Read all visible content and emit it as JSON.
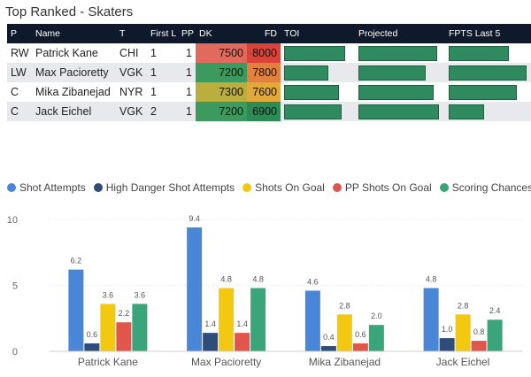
{
  "title": "Top Ranked - Skaters",
  "table": {
    "columns": [
      "P",
      "Name",
      "T",
      "First L",
      "PP",
      "DK",
      "FD",
      "TOI",
      "Projected",
      "FPTS Last 5"
    ],
    "rows": [
      {
        "pos": "RW",
        "name": "Patrick Kane",
        "team": "CHI",
        "first_line": "1",
        "pp": "1",
        "dk": "7500",
        "fd": "8000",
        "dk_color": "#e06a5e",
        "fd_color": "#d9433a",
        "toi": 0.9,
        "projected": 0.94,
        "fpts_last5": 0.75
      },
      {
        "pos": "LW",
        "name": "Max Pacioretty",
        "team": "VGK",
        "first_line": "1",
        "pp": "1",
        "dk": "7200",
        "fd": "7800",
        "dk_color": "#3c9a5f",
        "fd_color": "#e2813e",
        "toi": 0.65,
        "projected": 0.8,
        "fpts_last5": 0.98
      },
      {
        "pos": "C",
        "name": "Mika Zibanejad",
        "team": "NYR",
        "first_line": "1",
        "pp": "1",
        "dk": "7300",
        "fd": "7600",
        "dk_color": "#b9ae3e",
        "fd_color": "#e0a93a",
        "toi": 0.8,
        "projected": 0.89,
        "fpts_last5": 0.86
      },
      {
        "pos": "C",
        "name": "Jack Eichel",
        "team": "VGK",
        "first_line": "2",
        "pp": "1",
        "dk": "7200",
        "fd": "6900",
        "dk_color": "#3c9a5f",
        "fd_color": "#2c8a55",
        "toi": 0.85,
        "projected": 0.96,
        "fpts_last5": 0.44
      }
    ]
  },
  "chart_data": {
    "type": "bar",
    "title": "",
    "categories": [
      "Patrick Kane",
      "Max Pacioretty",
      "Mika Zibanejad",
      "Jack Eichel"
    ],
    "series": [
      {
        "name": "Shot Attempts",
        "color": "#4a86d8",
        "values": [
          6.2,
          9.4,
          4.6,
          4.8
        ]
      },
      {
        "name": "High Danger Shot Attempts",
        "color": "#2e4d7a",
        "values": [
          0.6,
          1.4,
          0.4,
          1.0
        ]
      },
      {
        "name": "Shots On Goal",
        "color": "#f2c811",
        "values": [
          3.6,
          4.8,
          2.8,
          2.8
        ]
      },
      {
        "name": "PP Shots On Goal",
        "color": "#e0564c",
        "values": [
          2.2,
          1.4,
          0.6,
          0.8
        ]
      },
      {
        "name": "Scoring Chances",
        "color": "#3aa57a",
        "values": [
          3.6,
          4.8,
          2.0,
          2.4
        ]
      }
    ],
    "value_labels": [
      [
        "6.2",
        "0.6",
        "3.6",
        "2.2",
        "3.6"
      ],
      [
        "9.4",
        "1.4",
        "4.8",
        "1.4",
        "4.8"
      ],
      [
        "4.6",
        "0.4",
        "2.8",
        "0.6",
        "2.0"
      ],
      [
        "4.8",
        "1.0",
        "2.8",
        "0.8",
        "2.4"
      ]
    ],
    "y_ticks": [
      "0",
      "5",
      "10"
    ],
    "ylim": [
      0,
      10
    ],
    "xlabel": "",
    "ylabel": "",
    "legend_position": "top-left"
  }
}
